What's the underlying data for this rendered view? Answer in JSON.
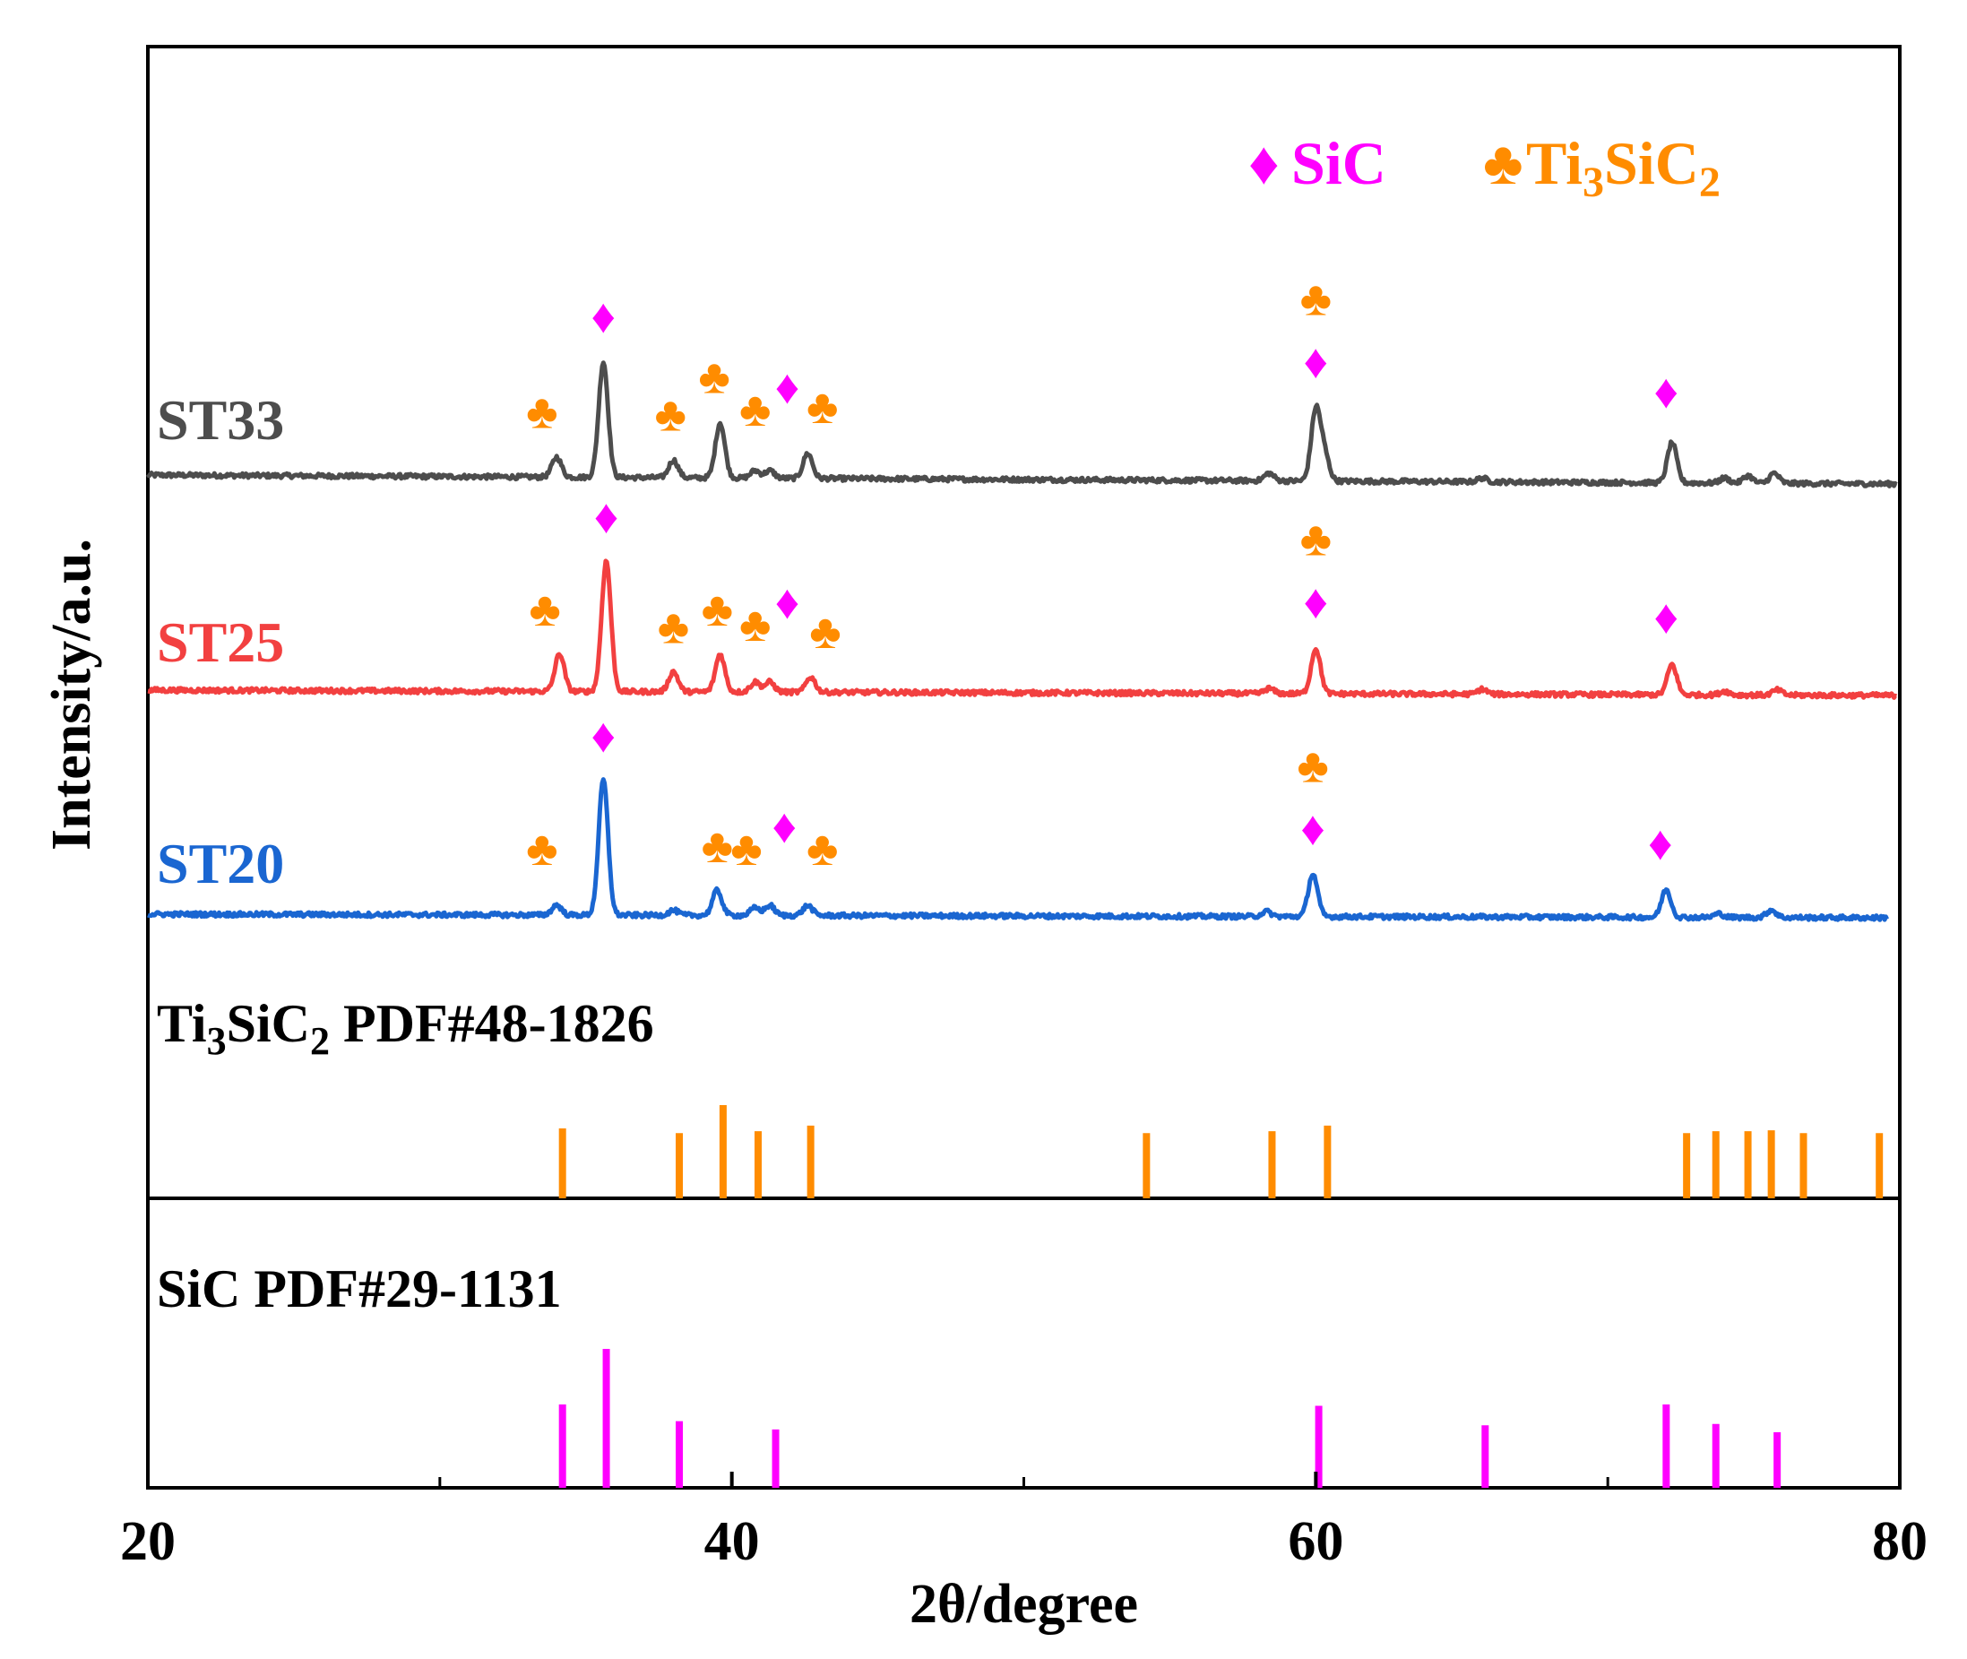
{
  "chart_data": {
    "type": "line",
    "xlabel": "2θ/degree",
    "ylabel": "Intensity/a.u.",
    "xlim": [
      20,
      80
    ],
    "x_ticks": [
      20,
      40,
      60,
      80
    ],
    "x_minor_ticks": [
      30,
      50,
      70
    ],
    "grid": false,
    "legend_position": "top-right",
    "colors": {
      "ST33": "#4d4d4d",
      "ST25": "#f24040",
      "ST20": "#1a66d1",
      "SiC": "#ff00ff",
      "Ti3SiC2": "#ff8c00"
    },
    "legend": [
      {
        "symbol": "♦",
        "text": "SiC",
        "base": "SiC",
        "parts": [],
        "color": "#ff00ff"
      },
      {
        "symbol": "♣",
        "text": "Ti3SiC2",
        "base": "Ti",
        "parts": [
          [
            "3",
            "SiC"
          ],
          [
            "2",
            ""
          ]
        ],
        "color": "#ff8c00"
      }
    ],
    "series": [
      {
        "name": "ST33",
        "color": "#4d4d4d",
        "baseline": 0,
        "peaks": [
          [
            34.0,
            0.8
          ],
          [
            35.6,
            4.6
          ],
          [
            38.0,
            0.7
          ],
          [
            39.6,
            2.2
          ],
          [
            40.8,
            0.3
          ],
          [
            41.3,
            0.3
          ],
          [
            42.6,
            1.0
          ],
          [
            58.4,
            0.3
          ],
          [
            60.0,
            2.8
          ],
          [
            60.3,
            1.0
          ],
          [
            72.2,
            1.6
          ],
          [
            74.0,
            0.2
          ],
          [
            74.8,
            0.3
          ],
          [
            75.7,
            0.4
          ],
          [
            65.7,
            0.15
          ]
        ],
        "markers": [
          {
            "symbol": "♣",
            "phase": "Ti3SiC2",
            "x": 33.5
          },
          {
            "symbol": "♦",
            "phase": "SiC",
            "x": 35.6
          },
          {
            "symbol": "♣",
            "phase": "Ti3SiC2",
            "x": 37.9
          },
          {
            "symbol": "♣",
            "phase": "Ti3SiC2",
            "x": 39.4
          },
          {
            "symbol": "♣",
            "phase": "Ti3SiC2",
            "x": 40.8
          },
          {
            "symbol": "♦",
            "phase": "SiC",
            "x": 41.9
          },
          {
            "symbol": "♣",
            "phase": "Ti3SiC2",
            "x": 43.1
          },
          {
            "symbol": "♦",
            "phase": "SiC",
            "x": 60.0
          },
          {
            "symbol": "♣",
            "phase": "Ti3SiC2",
            "x": 60.0
          },
          {
            "symbol": "♦",
            "phase": "SiC",
            "x": 72.0
          }
        ]
      },
      {
        "name": "ST25",
        "color": "#f24040",
        "baseline": 0,
        "peaks": [
          [
            34.1,
            1.5
          ],
          [
            35.7,
            5.2
          ],
          [
            38.0,
            0.8
          ],
          [
            39.6,
            1.5
          ],
          [
            40.8,
            0.4
          ],
          [
            41.3,
            0.4
          ],
          [
            42.7,
            0.6
          ],
          [
            58.4,
            0.2
          ],
          [
            60.0,
            1.8
          ],
          [
            65.7,
            0.2
          ],
          [
            72.2,
            1.2
          ],
          [
            74.0,
            0.15
          ],
          [
            75.8,
            0.2
          ]
        ],
        "markers": [
          {
            "symbol": "♣",
            "phase": "Ti3SiC2",
            "x": 33.6
          },
          {
            "symbol": "♦",
            "phase": "SiC",
            "x": 35.7
          },
          {
            "symbol": "♣",
            "phase": "Ti3SiC2",
            "x": 38.0
          },
          {
            "symbol": "♣",
            "phase": "Ti3SiC2",
            "x": 39.5
          },
          {
            "symbol": "♣",
            "phase": "Ti3SiC2",
            "x": 40.8
          },
          {
            "symbol": "♦",
            "phase": "SiC",
            "x": 41.9
          },
          {
            "symbol": "♣",
            "phase": "Ti3SiC2",
            "x": 43.2
          },
          {
            "symbol": "♦",
            "phase": "SiC",
            "x": 60.0
          },
          {
            "symbol": "♣",
            "phase": "Ti3SiC2",
            "x": 60.0
          },
          {
            "symbol": "♦",
            "phase": "SiC",
            "x": 72.0
          }
        ]
      },
      {
        "name": "ST20",
        "color": "#1a66d1",
        "baseline": 0,
        "peaks": [
          [
            34.0,
            0.4
          ],
          [
            35.6,
            5.4
          ],
          [
            38.0,
            0.2
          ],
          [
            39.5,
            1.0
          ],
          [
            40.8,
            0.3
          ],
          [
            41.3,
            0.4
          ],
          [
            42.6,
            0.4
          ],
          [
            58.3,
            0.2
          ],
          [
            59.9,
            1.7
          ],
          [
            72.0,
            1.1
          ],
          [
            73.8,
            0.15
          ],
          [
            75.6,
            0.3
          ]
        ],
        "markers": [
          {
            "symbol": "♣",
            "phase": "Ti3SiC2",
            "x": 33.5
          },
          {
            "symbol": "♦",
            "phase": "SiC",
            "x": 35.6
          },
          {
            "symbol": "♣",
            "phase": "Ti3SiC2",
            "x": 39.5
          },
          {
            "symbol": "♣",
            "phase": "Ti3SiC2",
            "x": 40.5
          },
          {
            "symbol": "♦",
            "phase": "SiC",
            "x": 41.8
          },
          {
            "symbol": "♣",
            "phase": "Ti3SiC2",
            "x": 43.1
          },
          {
            "symbol": "♦",
            "phase": "SiC",
            "x": 59.9
          },
          {
            "symbol": "♣",
            "phase": "Ti3SiC2",
            "x": 59.9
          },
          {
            "symbol": "♦",
            "phase": "SiC",
            "x": 71.8
          }
        ]
      }
    ],
    "references": [
      {
        "name": "Ti3SiC2 PDF#48-1826",
        "label_base": "Ti",
        "label_parts": [
          [
            "3",
            "SiC"
          ],
          [
            "2",
            " PDF#48-1826"
          ]
        ],
        "color": "#ff8c00",
        "lines": [
          [
            34.2,
            0.75
          ],
          [
            38.2,
            0.7
          ],
          [
            39.7,
            1.0
          ],
          [
            40.9,
            0.72
          ],
          [
            42.7,
            0.78
          ],
          [
            54.2,
            0.7
          ],
          [
            58.5,
            0.72
          ],
          [
            60.4,
            0.78
          ],
          [
            72.7,
            0.7
          ],
          [
            73.7,
            0.72
          ],
          [
            74.8,
            0.72
          ],
          [
            75.6,
            0.73
          ],
          [
            76.7,
            0.7
          ],
          [
            79.3,
            0.7
          ]
        ]
      },
      {
        "name": "SiC PDF#29-1131",
        "label_base": "SiC PDF#29-1131",
        "label_parts": [],
        "color": "#ff00ff",
        "lines": [
          [
            34.2,
            0.6
          ],
          [
            35.7,
            1.0
          ],
          [
            38.2,
            0.48
          ],
          [
            41.5,
            0.42
          ],
          [
            60.1,
            0.59
          ],
          [
            65.8,
            0.45
          ],
          [
            72.0,
            0.6
          ],
          [
            73.7,
            0.46
          ],
          [
            75.8,
            0.4
          ]
        ]
      }
    ]
  }
}
